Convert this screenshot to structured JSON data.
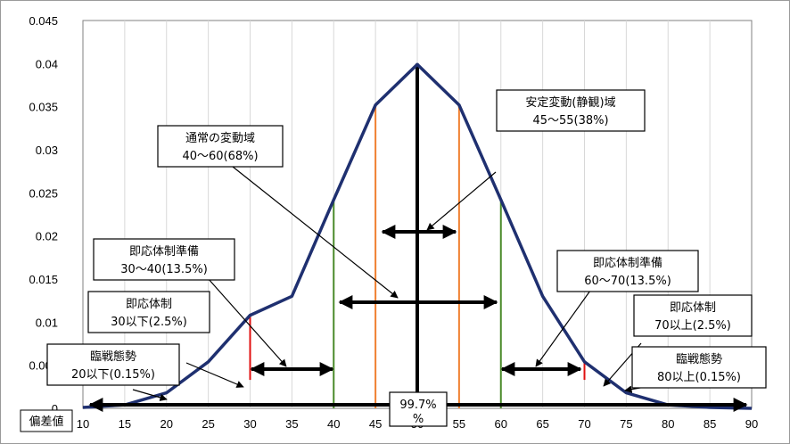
{
  "chart_data": {
    "type": "line",
    "x": [
      10,
      15,
      20,
      25,
      30,
      35,
      40,
      45,
      50,
      55,
      60,
      65,
      70,
      75,
      80,
      85,
      90
    ],
    "series": [
      {
        "values": [
          0.0001,
          0.0004,
          0.0018,
          0.0054,
          0.0108,
          0.013,
          0.0242,
          0.0352,
          0.0399,
          0.0352,
          0.0242,
          0.013,
          0.0054,
          0.0018,
          0.0004,
          0.0001,
          0.0
        ]
      }
    ],
    "xlim": [
      10,
      90
    ],
    "ylim": [
      0,
      0.045
    ],
    "yticks": [
      "0",
      "0.005",
      "0.01",
      "0.015",
      "0.02",
      "0.025",
      "0.03",
      "0.035",
      "0.04",
      "0.045"
    ],
    "xticks": [
      "10",
      "15",
      "20",
      "25",
      "30",
      "35",
      "40",
      "45",
      "50",
      "55",
      "60",
      "65",
      "70",
      "75",
      "80",
      "85",
      "90"
    ],
    "x_axis_title": "偏差値",
    "grid": "vertical",
    "vertical_markers": [
      {
        "x": 30,
        "color": "#e01010"
      },
      {
        "x": 40,
        "color": "#4a8a2a"
      },
      {
        "x": 45,
        "color": "#f08030"
      },
      {
        "x": 50,
        "color": "#000000"
      },
      {
        "x": 55,
        "color": "#f08030"
      },
      {
        "x": 60,
        "color": "#4a8a2a"
      },
      {
        "x": 70,
        "color": "#e01010"
      }
    ],
    "annotations": [
      {
        "lines": [
          "安定変動(静観)域",
          "45～55(38%)"
        ]
      },
      {
        "lines": [
          "通常の変動域",
          "40～60(68%)"
        ]
      },
      {
        "lines": [
          "即応体制準備",
          "30～40(13.5%)"
        ]
      },
      {
        "lines": [
          "即応体制準備",
          "60～70(13.5%)"
        ]
      },
      {
        "lines": [
          "即応体制",
          "30以下(2.5%)"
        ]
      },
      {
        "lines": [
          "即応体制",
          "70以上(2.5%)"
        ]
      },
      {
        "lines": [
          "臨戦態勢",
          "20以下(0.15%)"
        ]
      },
      {
        "lines": [
          "臨戦態勢",
          "80以上(0.15%)"
        ]
      },
      {
        "lines": [
          "99.7%",
          "%"
        ]
      }
    ],
    "colors": {
      "curve": "#1f3070",
      "red": "#e01010",
      "green": "#4a8a2a",
      "orange": "#f08030"
    }
  }
}
